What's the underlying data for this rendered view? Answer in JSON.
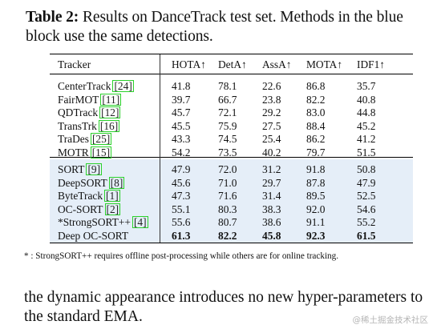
{
  "caption": {
    "label": "Table 2:",
    "text": "Results on DanceTrack test set. Methods in the blue block use the same detections."
  },
  "table": {
    "headers": [
      "Tracker",
      "HOTA↑",
      "DetA↑",
      "AssA↑",
      "MOTA↑",
      "IDF1↑"
    ],
    "group1": [
      {
        "name": "CenterTrack",
        "ref": "24",
        "values": [
          "41.8",
          "78.1",
          "22.6",
          "86.8",
          "35.7"
        ]
      },
      {
        "name": "FairMOT",
        "ref": "11",
        "values": [
          "39.7",
          "66.7",
          "23.8",
          "82.2",
          "40.8"
        ]
      },
      {
        "name": "QDTrack",
        "ref": "12",
        "values": [
          "45.7",
          "72.1",
          "29.2",
          "83.0",
          "44.8"
        ]
      },
      {
        "name": "TransTrk",
        "ref": "16",
        "values": [
          "45.5",
          "75.9",
          "27.5",
          "88.4",
          "45.2"
        ]
      },
      {
        "name": "TraDes",
        "ref": "25",
        "values": [
          "43.3",
          "74.5",
          "25.4",
          "86.2",
          "41.2"
        ]
      },
      {
        "name": "MOTR",
        "ref": "15",
        "values": [
          "54.2",
          "73.5",
          "40.2",
          "79.7",
          "51.5"
        ]
      }
    ],
    "group2": [
      {
        "name": "SORT",
        "ref": "9",
        "values": [
          "47.9",
          "72.0",
          "31.2",
          "91.8",
          "50.8"
        ]
      },
      {
        "name": "DeepSORT",
        "ref": "8",
        "values": [
          "45.6",
          "71.0",
          "29.7",
          "87.8",
          "47.9"
        ]
      },
      {
        "name": "ByteTrack",
        "ref": "1",
        "values": [
          "47.3",
          "71.6",
          "31.4",
          "89.5",
          "52.5"
        ]
      },
      {
        "name": "OC-SORT",
        "ref": "2",
        "values": [
          "55.1",
          "80.3",
          "38.3",
          "92.0",
          "54.6"
        ]
      },
      {
        "name": "*StrongSORT++",
        "ref": "4",
        "values": [
          "55.6",
          "80.7",
          "38.6",
          "91.1",
          "55.2"
        ]
      },
      {
        "name": "Deep OC-SORT",
        "ref": "",
        "values": [
          "61.3",
          "82.2",
          "45.8",
          "92.3",
          "61.5"
        ]
      }
    ]
  },
  "footnote": "* : StrongSORT++ requires offline post-processing while others are for online tracking.",
  "body_text": "the dynamic appearance introduces no new hyper-parameters to the standard EMA.",
  "watermark": "@稀土掘金技术社区",
  "colors": {
    "blue_block": "#e5eef8",
    "ref_box": "#2bd12b"
  }
}
